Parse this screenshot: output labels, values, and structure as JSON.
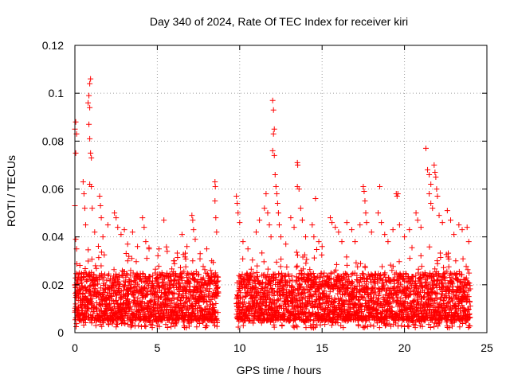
{
  "chart_data": {
    "type": "scatter",
    "title": "Day 340 of 2024, Rate Of TEC Index for receiver kiri",
    "xlabel": "GPS time / hours",
    "ylabel": "ROTI / TECUs",
    "xlim": [
      0,
      25
    ],
    "ylim": [
      0,
      0.12
    ],
    "x_ticks": [
      0,
      5,
      10,
      15,
      20,
      25
    ],
    "x_tick_labels": [
      "0",
      "5",
      "10",
      "15",
      "20",
      "25"
    ],
    "y_ticks": [
      0,
      0.02,
      0.04,
      0.06,
      0.08,
      0.1,
      0.12
    ],
    "y_tick_labels": [
      "0",
      "0.02",
      "0.04",
      "0.06",
      "0.08",
      "0.1",
      "0.12"
    ],
    "grid": true,
    "marker": "plus",
    "color": "#ff0000",
    "series": [
      {
        "name": "ROTI",
        "gap_hours": [
          8.7,
          9.8
        ],
        "dense_band": {
          "typical_low": 0.005,
          "typical_high": 0.025
        },
        "points": [
          [
            0.0,
            0.085
          ],
          [
            0.05,
            0.088
          ],
          [
            0.1,
            0.083
          ],
          [
            0.05,
            0.075
          ],
          [
            0.0,
            0.053
          ],
          [
            0.05,
            0.039
          ],
          [
            0.1,
            0.035
          ],
          [
            0.0,
            0.02
          ],
          [
            0.05,
            0.012
          ],
          [
            0.1,
            0.009
          ],
          [
            0.15,
            0.016
          ],
          [
            0.5,
            0.063
          ],
          [
            0.55,
            0.058
          ],
          [
            0.6,
            0.052
          ],
          [
            0.65,
            0.045
          ],
          [
            0.8,
            0.096
          ],
          [
            0.85,
            0.099
          ],
          [
            0.9,
            0.104
          ],
          [
            0.95,
            0.106
          ],
          [
            0.9,
            0.094
          ],
          [
            0.85,
            0.087
          ],
          [
            0.9,
            0.081
          ],
          [
            0.95,
            0.075
          ],
          [
            1.0,
            0.073
          ],
          [
            0.9,
            0.062
          ],
          [
            1.0,
            0.061
          ],
          [
            1.05,
            0.052
          ],
          [
            1.2,
            0.042
          ],
          [
            1.5,
            0.057
          ],
          [
            1.55,
            0.053
          ],
          [
            1.6,
            0.048
          ],
          [
            1.7,
            0.04
          ],
          [
            2.0,
            0.045
          ],
          [
            2.4,
            0.05
          ],
          [
            2.5,
            0.048
          ],
          [
            2.6,
            0.044
          ],
          [
            2.8,
            0.041
          ],
          [
            3.0,
            0.043
          ],
          [
            3.2,
            0.037
          ],
          [
            3.5,
            0.042
          ],
          [
            3.8,
            0.036
          ],
          [
            4.1,
            0.048
          ],
          [
            4.2,
            0.044
          ],
          [
            4.3,
            0.038
          ],
          [
            4.5,
            0.035
          ],
          [
            5.1,
            0.035
          ],
          [
            5.4,
            0.047
          ],
          [
            5.6,
            0.034
          ],
          [
            6.0,
            0.03
          ],
          [
            6.5,
            0.041
          ],
          [
            6.8,
            0.036
          ],
          [
            7.1,
            0.049
          ],
          [
            7.15,
            0.047
          ],
          [
            7.2,
            0.043
          ],
          [
            7.3,
            0.039
          ],
          [
            7.6,
            0.033
          ],
          [
            8.0,
            0.035
          ],
          [
            8.3,
            0.03
          ],
          [
            8.5,
            0.063
          ],
          [
            8.52,
            0.061
          ],
          [
            8.5,
            0.055
          ],
          [
            8.55,
            0.048
          ],
          [
            8.6,
            0.042
          ],
          [
            9.8,
            0.057
          ],
          [
            9.85,
            0.054
          ],
          [
            9.9,
            0.05
          ],
          [
            10.0,
            0.046
          ],
          [
            10.2,
            0.038
          ],
          [
            10.5,
            0.035
          ],
          [
            11.0,
            0.042
          ],
          [
            11.2,
            0.047
          ],
          [
            11.5,
            0.052
          ],
          [
            11.6,
            0.058
          ],
          [
            11.7,
            0.05
          ],
          [
            11.8,
            0.045
          ],
          [
            11.9,
            0.04
          ],
          [
            12.0,
            0.097
          ],
          [
            12.05,
            0.093
          ],
          [
            12.1,
            0.085
          ],
          [
            12.05,
            0.083
          ],
          [
            12.0,
            0.076
          ],
          [
            12.1,
            0.074
          ],
          [
            12.15,
            0.066
          ],
          [
            12.2,
            0.061
          ],
          [
            12.25,
            0.058
          ],
          [
            12.3,
            0.054
          ],
          [
            12.35,
            0.05
          ],
          [
            12.4,
            0.045
          ],
          [
            12.5,
            0.04
          ],
          [
            12.8,
            0.037
          ],
          [
            13.1,
            0.048
          ],
          [
            13.3,
            0.044
          ],
          [
            13.5,
            0.071
          ],
          [
            13.52,
            0.07
          ],
          [
            13.5,
            0.061
          ],
          [
            13.6,
            0.06
          ],
          [
            13.7,
            0.052
          ],
          [
            13.8,
            0.047
          ],
          [
            14.0,
            0.04
          ],
          [
            14.4,
            0.045
          ],
          [
            14.5,
            0.04
          ],
          [
            14.6,
            0.056
          ],
          [
            14.8,
            0.038
          ],
          [
            15.0,
            0.036
          ],
          [
            15.5,
            0.048
          ],
          [
            15.6,
            0.046
          ],
          [
            15.8,
            0.044
          ],
          [
            16.0,
            0.042
          ],
          [
            16.2,
            0.038
          ],
          [
            16.5,
            0.046
          ],
          [
            16.8,
            0.043
          ],
          [
            17.0,
            0.038
          ],
          [
            17.3,
            0.045
          ],
          [
            17.5,
            0.061
          ],
          [
            17.55,
            0.059
          ],
          [
            17.6,
            0.055
          ],
          [
            17.65,
            0.05
          ],
          [
            17.7,
            0.046
          ],
          [
            18.0,
            0.042
          ],
          [
            18.4,
            0.05
          ],
          [
            18.5,
            0.061
          ],
          [
            18.6,
            0.046
          ],
          [
            18.8,
            0.041
          ],
          [
            19.0,
            0.038
          ],
          [
            19.3,
            0.043
          ],
          [
            19.5,
            0.058
          ],
          [
            19.55,
            0.057
          ],
          [
            19.6,
            0.058
          ],
          [
            19.7,
            0.045
          ],
          [
            20.0,
            0.04
          ],
          [
            20.3,
            0.043
          ],
          [
            20.7,
            0.05
          ],
          [
            20.8,
            0.047
          ],
          [
            21.0,
            0.044
          ],
          [
            21.3,
            0.077
          ],
          [
            21.4,
            0.068
          ],
          [
            21.5,
            0.066
          ],
          [
            21.6,
            0.062
          ],
          [
            21.5,
            0.058
          ],
          [
            21.6,
            0.054
          ],
          [
            21.7,
            0.052
          ],
          [
            21.8,
            0.07
          ],
          [
            21.85,
            0.067
          ],
          [
            21.9,
            0.065
          ],
          [
            21.95,
            0.06
          ],
          [
            22.0,
            0.057
          ],
          [
            22.1,
            0.049
          ],
          [
            22.3,
            0.046
          ],
          [
            22.6,
            0.051
          ],
          [
            22.8,
            0.047
          ],
          [
            23.0,
            0.041
          ],
          [
            23.3,
            0.045
          ],
          [
            23.5,
            0.043
          ],
          [
            23.8,
            0.044
          ],
          [
            23.9,
            0.038
          ]
        ]
      }
    ]
  }
}
